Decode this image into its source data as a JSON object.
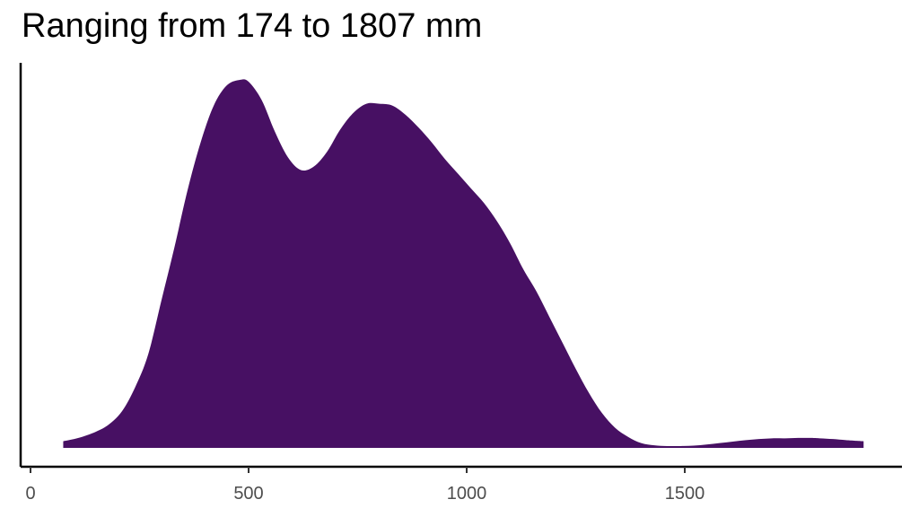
{
  "chart_data": {
    "type": "area",
    "title": "Ranging from 174 to 1807 mm",
    "xlabel": "",
    "ylabel": "",
    "xlim": [
      0,
      2000
    ],
    "ylim": [
      0,
      1.0
    ],
    "x_ticks": [
      0,
      500,
      1000,
      1500
    ],
    "x_tick_labels": [
      "0",
      "500",
      "1000",
      "1500"
    ],
    "grid": false,
    "legend": "none",
    "fill_color": "#471063",
    "series": [
      {
        "x": [
          75,
          110,
          150,
          180,
          210,
          240,
          270,
          300,
          330,
          360,
          390,
          420,
          450,
          480,
          500,
          530,
          560,
          590,
          620,
          650,
          680,
          710,
          740,
          770,
          800,
          830,
          860,
          890,
          920,
          950,
          980,
          1010,
          1040,
          1070,
          1100,
          1130,
          1160,
          1190,
          1220,
          1250,
          1280,
          1310,
          1340,
          1370,
          1400,
          1430,
          1460,
          1490,
          1520,
          1550,
          1580,
          1610,
          1640,
          1670,
          1700,
          1730,
          1760,
          1790,
          1810,
          1840,
          1870,
          1910
        ],
        "y": [
          0.018,
          0.027,
          0.044,
          0.064,
          0.1,
          0.165,
          0.255,
          0.4,
          0.545,
          0.7,
          0.83,
          0.93,
          0.985,
          1.0,
          0.995,
          0.945,
          0.86,
          0.79,
          0.755,
          0.765,
          0.805,
          0.865,
          0.91,
          0.935,
          0.935,
          0.93,
          0.905,
          0.87,
          0.83,
          0.785,
          0.745,
          0.705,
          0.665,
          0.615,
          0.555,
          0.485,
          0.425,
          0.355,
          0.285,
          0.215,
          0.15,
          0.095,
          0.055,
          0.03,
          0.013,
          0.007,
          0.005,
          0.005,
          0.006,
          0.009,
          0.013,
          0.017,
          0.021,
          0.024,
          0.026,
          0.026,
          0.027,
          0.027,
          0.026,
          0.024,
          0.021,
          0.018
        ]
      }
    ]
  }
}
